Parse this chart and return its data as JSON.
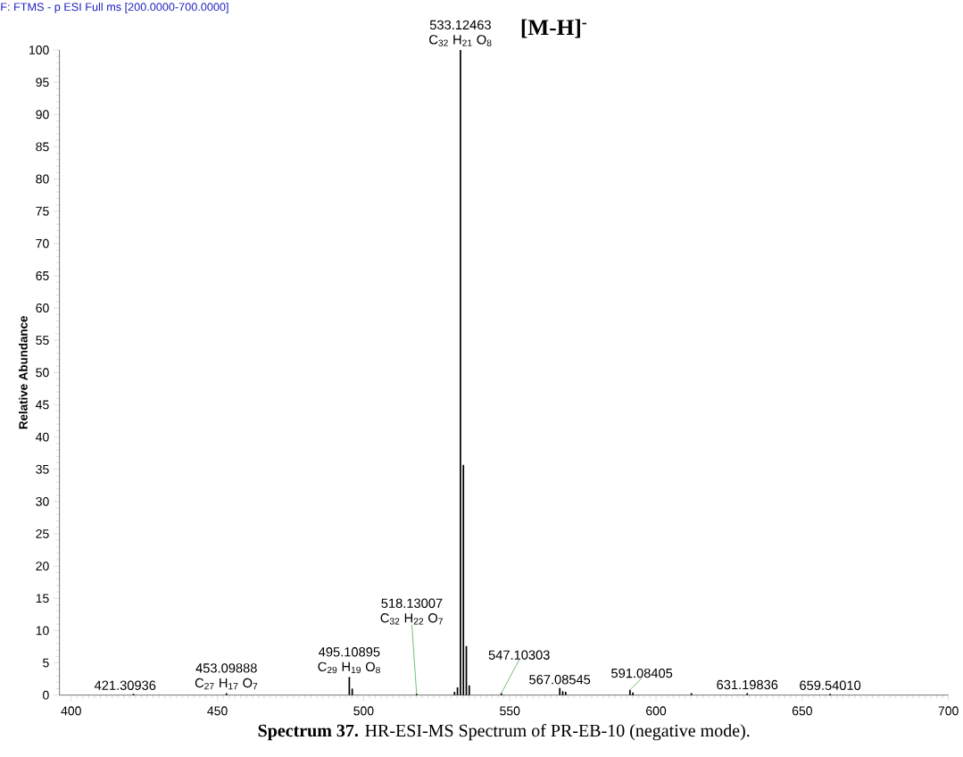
{
  "chart_data": {
    "type": "bar",
    "color": "#000000",
    "x": [
      421.30936,
      453.09888,
      495.10895,
      496.11,
      518.13007,
      531.1,
      532.1,
      533.12463,
      534.128,
      535.131,
      536.13,
      547.10303,
      567.08545,
      568.09,
      569.09,
      591.08405,
      592.09,
      612.1,
      631.19836,
      659.5401
    ],
    "values": [
      0.2,
      0.3,
      2.8,
      1.0,
      0.2,
      0.5,
      1.2,
      100,
      35.7,
      7.6,
      1.5,
      0.3,
      1.1,
      0.6,
      0.5,
      0.8,
      0.4,
      0.3,
      0.3,
      0.2
    ],
    "xlim": [
      396,
      700
    ],
    "ylim": [
      0,
      100
    ],
    "xticks": [
      400,
      450,
      500,
      550,
      600,
      650,
      700
    ],
    "yticks": [
      0,
      5,
      10,
      15,
      20,
      25,
      30,
      35,
      40,
      45,
      50,
      55,
      60,
      65,
      70,
      75,
      80,
      85,
      90,
      95,
      100
    ],
    "ylabel": "Relative Abundance",
    "annotations": [
      "F: FTMS - p ESI Full ms [200.0000-700.0000]",
      {
        "text": "533.12463",
        "x": 533.12463,
        "y": 100
      },
      {
        "text": "C$_{32}$ H$_{21}$ O$_{8}$",
        "x": 533.12463,
        "y": 100
      },
      "[M-H]$^{-}$",
      {
        "text": "518.13007",
        "x": 518.13007,
        "y": 0.2
      },
      {
        "text": "C$_{32}$ H$_{22}$ O$_{7}$",
        "x": 518.13007,
        "y": 0.2
      },
      {
        "text": "495.10895",
        "x": 495.10895,
        "y": 2.8
      },
      {
        "text": "C$_{29}$ H$_{19}$ O$_{8}$",
        "x": 495.10895,
        "y": 2.8
      },
      {
        "text": "453.09888",
        "x": 453.09888,
        "y": 0.3
      },
      {
        "text": "C$_{27}$ H$_{17}$ O$_{7}$",
        "x": 453.09888,
        "y": 0.3
      },
      {
        "text": "421.30936",
        "x": 421.30936,
        "y": 0.2
      },
      {
        "text": "547.10303",
        "x": 547.10303,
        "y": 0.3
      },
      {
        "text": "567.08545",
        "x": 567.08545,
        "y": 1.1
      },
      {
        "text": "591.08405",
        "x": 591.08405,
        "y": 0.8
      },
      {
        "text": "631.19836",
        "x": 631.19836,
        "y": 0.3
      },
      {
        "text": "659.54010",
        "x": 659.5401,
        "y": 0.2
      },
      "**Spectrum 37.** HR-ESI-MS Spectrum of PR-EB-10 (negative mode)."
    ]
  }
}
